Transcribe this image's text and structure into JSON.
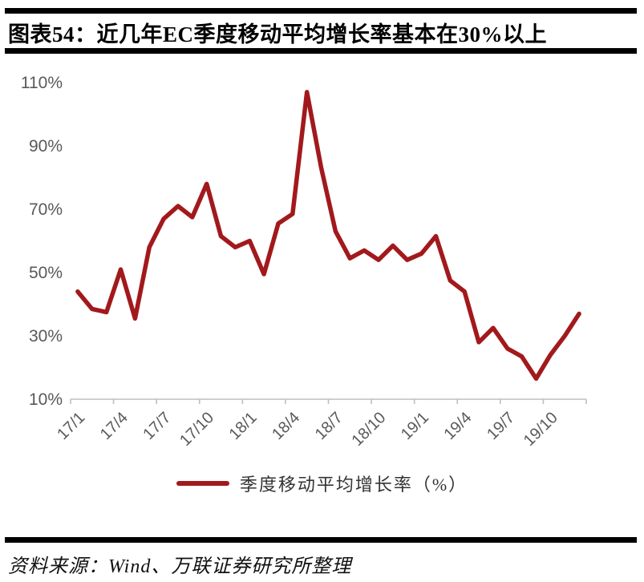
{
  "header": {
    "title": "图表54：近几年EC季度移动平均增长率基本在30%以上"
  },
  "chart_data": {
    "type": "line",
    "title": "图表54：近几年EC季度移动平均增长率基本在30%以上",
    "x": [
      "17/1",
      "17/2",
      "17/3",
      "17/4",
      "17/5",
      "17/6",
      "17/7",
      "17/8",
      "17/9",
      "17/10",
      "17/11",
      "17/12",
      "18/1",
      "18/2",
      "18/3",
      "18/4",
      "18/5",
      "18/6",
      "18/7",
      "18/8",
      "18/9",
      "18/10",
      "18/11",
      "18/12",
      "19/1",
      "19/2",
      "19/3",
      "19/4",
      "19/5",
      "19/6",
      "19/7",
      "19/8",
      "19/9",
      "19/10",
      "19/11",
      "19/12"
    ],
    "series": [
      {
        "name": "季度移动平均增长率（%）",
        "color": "#a2191c",
        "values": [
          44,
          38.5,
          37.5,
          51,
          35.5,
          58,
          67,
          71,
          67.5,
          78,
          61.5,
          58,
          60,
          49.5,
          65.5,
          68.5,
          107,
          83,
          63,
          54.5,
          57,
          54,
          58.5,
          54,
          56,
          61.5,
          47.5,
          44,
          28,
          32.5,
          26,
          23.5,
          16.5,
          24,
          30,
          37
        ]
      }
    ],
    "xticks": [
      "17/1",
      "17/4",
      "17/7",
      "17/10",
      "18/1",
      "18/4",
      "18/7",
      "18/10",
      "19/1",
      "19/4",
      "19/7",
      "19/10"
    ],
    "yticks": [
      10,
      30,
      50,
      70,
      90,
      110
    ],
    "ytick_suffix": "%",
    "ylim": [
      10,
      110
    ],
    "grid": false,
    "legend_position": "bottom",
    "axis_color": "#bfbfbf",
    "tick_label_color": "#595959"
  },
  "legend": {
    "label": "季度移动平均增长率（%）"
  },
  "footer": {
    "source": "资料来源：Wind、万联证券研究所整理"
  }
}
